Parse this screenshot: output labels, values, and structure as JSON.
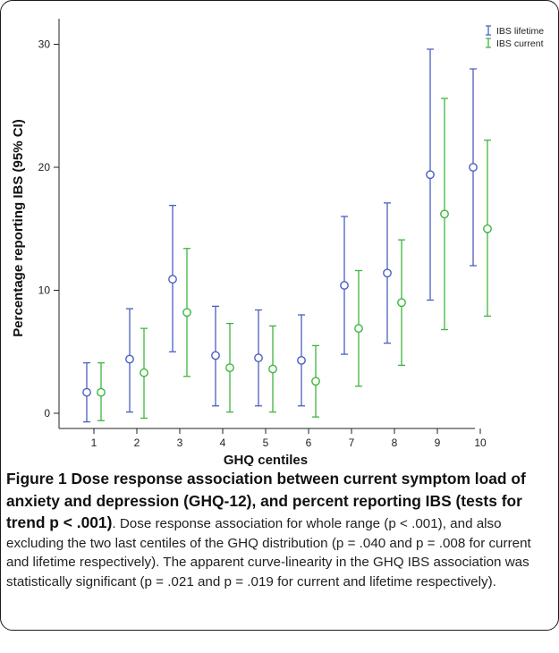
{
  "chart_data": {
    "type": "errorbar",
    "xlabel": "GHQ centiles",
    "ylabel": "Percentage reporting IBS (95% CI)",
    "categories": [
      "1",
      "2",
      "3",
      "4",
      "5",
      "6",
      "7",
      "8",
      "9",
      "10"
    ],
    "ylim": [
      -1.8,
      32.2
    ],
    "yticks": [
      0,
      10,
      20,
      30
    ],
    "legend_position": "top-right",
    "grid": false,
    "series": [
      {
        "name": "IBS lifetime",
        "color": "#4a5fc1",
        "marker": "circle",
        "values": [
          1.7,
          4.4,
          10.9,
          4.7,
          4.5,
          4.3,
          10.4,
          11.4,
          19.4,
          20.0
        ],
        "lower": [
          -0.7,
          0.1,
          5.0,
          0.6,
          0.6,
          0.6,
          4.8,
          5.7,
          9.2,
          12.0
        ],
        "upper": [
          4.1,
          8.5,
          16.9,
          8.7,
          8.4,
          8.0,
          16.0,
          17.1,
          29.6,
          28.0
        ]
      },
      {
        "name": "IBS current",
        "color": "#3db53d",
        "marker": "circle",
        "values": [
          1.7,
          3.3,
          8.2,
          3.7,
          3.6,
          2.6,
          6.9,
          9.0,
          16.2,
          15.0
        ],
        "lower": [
          -0.6,
          -0.4,
          3.0,
          0.1,
          0.1,
          -0.3,
          2.2,
          3.9,
          6.8,
          7.9
        ],
        "upper": [
          4.1,
          6.9,
          13.4,
          7.3,
          7.1,
          5.5,
          11.6,
          14.1,
          25.6,
          22.2
        ]
      }
    ]
  },
  "caption": {
    "bold": "Figure 1 Dose response association between current symptom load of anxiety and depression (GHQ-12), and percent reporting IBS (tests for trend p < .001)",
    "rest": ". Dose response association for whole range (p < .001), and also excluding the two last centiles of the GHQ distribution (p = .040 and p = .008 for current and lifetime respectively). The apparent curve-linearity in the GHQ IBS association was statistically significant (p = .021 and p = .019 for current and lifetime respectively)."
  }
}
